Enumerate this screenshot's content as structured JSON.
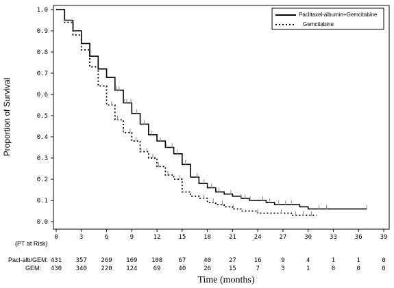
{
  "chart_data": {
    "type": "line",
    "title": "",
    "xlabel": "Time (months)",
    "ylabel": "Proportion of Survival",
    "xlim": [
      0,
      39
    ],
    "ylim": [
      0,
      1.0
    ],
    "x_ticks": [
      0,
      3,
      6,
      9,
      12,
      15,
      18,
      21,
      24,
      27,
      30,
      33,
      36,
      39
    ],
    "x_tick_labels": [
      "0",
      "3",
      "6",
      "9",
      "12",
      "15",
      "18",
      "21",
      "24",
      "27",
      "30",
      "33",
      "36",
      "39"
    ],
    "y_ticks": [
      0,
      0.1,
      0.2,
      0.3,
      0.4,
      0.5,
      0.6,
      0.7,
      0.8,
      0.9,
      1.0
    ],
    "y_tick_labels": [
      "0.0",
      "0.1",
      "0.2",
      "0.3",
      "0.4",
      "0.5",
      "0.6",
      "0.7",
      "0.8",
      "0.9",
      "1.0"
    ],
    "grid": false,
    "legend_position": "top-right",
    "series": [
      {
        "name": "Paclitaxel-albumin+Gemcitabine",
        "line_style": "solid",
        "x": [
          0,
          1,
          2,
          3,
          4,
          5,
          6,
          7,
          8,
          9,
          10,
          11,
          12,
          13,
          14,
          15,
          16,
          17,
          18,
          19,
          20,
          21,
          22,
          23,
          24,
          25,
          26,
          27,
          28,
          29,
          30,
          31,
          32,
          33,
          34,
          35,
          36,
          37
        ],
        "y": [
          1.0,
          0.95,
          0.9,
          0.84,
          0.78,
          0.72,
          0.68,
          0.62,
          0.56,
          0.51,
          0.46,
          0.41,
          0.38,
          0.35,
          0.32,
          0.27,
          0.21,
          0.18,
          0.16,
          0.14,
          0.13,
          0.12,
          0.11,
          0.1,
          0.1,
          0.09,
          0.08,
          0.08,
          0.08,
          0.07,
          0.06,
          0.06,
          0.06,
          0.06,
          0.06,
          0.06,
          0.06,
          0.06
        ],
        "censor_x": [
          7.2,
          7.5,
          8.1,
          8.4,
          8.9,
          9.6,
          10.5,
          11.3,
          12.4,
          13.1,
          13.8,
          14.4,
          15.4,
          16.8,
          17.6,
          18.5,
          19.4,
          20.8,
          22.0,
          22.5,
          23.1,
          24.6,
          25.4,
          26.5,
          27.3,
          28.0,
          31.3,
          32.2,
          37.0
        ]
      },
      {
        "name": "Gemcitabine",
        "line_style": "dotted",
        "x": [
          0,
          1,
          2,
          3,
          4,
          5,
          6,
          7,
          8,
          9,
          10,
          11,
          12,
          13,
          14,
          15,
          16,
          17,
          18,
          19,
          20,
          21,
          22,
          23,
          24,
          25,
          26,
          27,
          28,
          29,
          30,
          31
        ],
        "y": [
          1.0,
          0.94,
          0.88,
          0.81,
          0.73,
          0.64,
          0.55,
          0.48,
          0.42,
          0.38,
          0.33,
          0.3,
          0.26,
          0.22,
          0.2,
          0.14,
          0.12,
          0.11,
          0.09,
          0.08,
          0.07,
          0.06,
          0.05,
          0.05,
          0.04,
          0.04,
          0.04,
          0.04,
          0.03,
          0.03,
          0.03,
          0.03
        ],
        "censor_x": [
          6.6,
          7.3,
          8.0,
          8.8,
          9.5,
          10.1,
          10.8,
          11.5,
          12.2,
          13.3,
          14.7,
          17.6,
          18.7,
          19.8,
          21.1,
          24.0,
          26.8,
          28.5,
          29.4,
          30.4
        ]
      }
    ],
    "risk_table": {
      "header": "(PT at Risk)",
      "times": [
        0,
        3,
        6,
        9,
        12,
        15,
        18,
        21,
        24,
        27,
        30,
        33,
        36,
        39
      ],
      "rows": [
        {
          "label": "Pacl-alb/GEM:",
          "values": [
            "431",
            "357",
            "269",
            "169",
            "108",
            "67",
            "40",
            "27",
            "16",
            "9",
            "4",
            "1",
            "1",
            "0"
          ]
        },
        {
          "label": "GEM:",
          "values": [
            "430",
            "340",
            "220",
            "124",
            "69",
            "40",
            "26",
            "15",
            "7",
            "3",
            "1",
            "0",
            "0",
            "0"
          ]
        }
      ]
    }
  },
  "colors": {
    "line": "#000000",
    "censor": "#888888",
    "background": "#ffffff"
  }
}
